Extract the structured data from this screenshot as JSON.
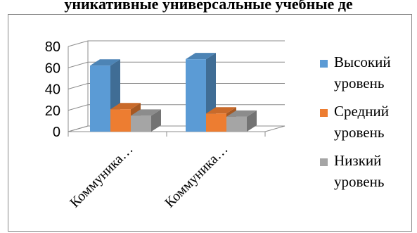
{
  "chart_data": {
    "type": "bar",
    "title": "уникативные универсальные учебные де",
    "categories": [
      "Коммуника…",
      "Коммуника…"
    ],
    "series": [
      {
        "name": "Высокий уровень",
        "values": [
          62,
          68
        ],
        "color": "#5b9bd5"
      },
      {
        "name": "Средний уровень",
        "values": [
          21,
          17
        ],
        "color": "#ed7d31"
      },
      {
        "name": "Низкий уровень",
        "values": [
          15,
          14
        ],
        "color": "#a5a5a5"
      }
    ],
    "yticks": [
      "0",
      "20",
      "40",
      "60",
      "80"
    ],
    "ylim": [
      0,
      80
    ],
    "grid": true,
    "legend": "right",
    "style": "3d-clustered-column"
  }
}
